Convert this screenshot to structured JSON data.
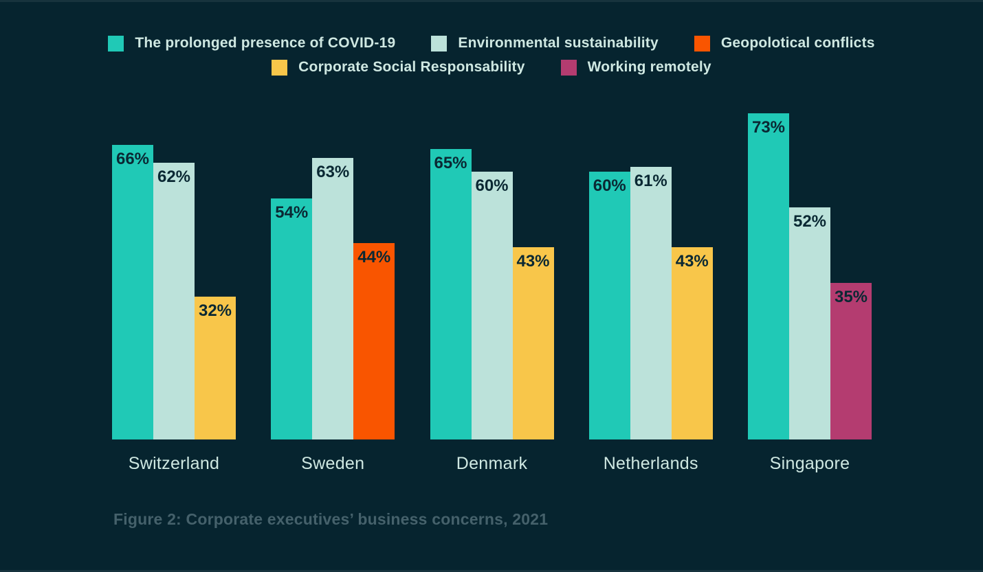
{
  "colors": {
    "background": "#06242f",
    "edge_strip": "#17333d",
    "bar_value_text": "#0a2833",
    "category_text": "#cfe8e2",
    "legend_text": "#cfe8e2",
    "caption_text": "#45616b"
  },
  "series_colors": {
    "The prolonged presence of COVID-19": "#20c9b6",
    "Environmental sustainability": "#bce2da",
    "Geopolotical conflicts": "#f95500",
    "Corporate Social Responsability": "#f8c64a",
    "Working remotely": "#b43c70"
  },
  "legend": {
    "rows": [
      [
        {
          "label": "The prolonged presence of COVID-19",
          "color": "#20c9b6"
        },
        {
          "label": "Environmental sustainability",
          "color": "#bce2da"
        },
        {
          "label": "Geopolotical conflicts",
          "color": "#f95500"
        }
      ],
      [
        {
          "label": "Corporate Social Responsability",
          "color": "#f8c64a"
        },
        {
          "label": "Working remotely",
          "color": "#b43c70"
        }
      ]
    ]
  },
  "chart_data": {
    "type": "bar",
    "title": "",
    "caption": "Figure 2: Corporate executives’ business concerns, 2021",
    "unit": "%",
    "value_axis_visible": false,
    "grid": false,
    "legend_position": "top",
    "ylim": [
      0,
      100
    ],
    "categories": [
      "Switzerland",
      "Sweden",
      "Denmark",
      "Netherlands",
      "Singapore"
    ],
    "series": [
      {
        "name": "The prolonged presence of COVID-19",
        "values": [
          66,
          54,
          65,
          60,
          73
        ]
      },
      {
        "name": "Environmental sustainability",
        "values": [
          62,
          63,
          60,
          61,
          52
        ]
      },
      {
        "name": "Geopolotical conflicts",
        "values": [
          null,
          44,
          null,
          null,
          null
        ]
      },
      {
        "name": "Corporate Social Responsability",
        "values": [
          32,
          null,
          43,
          43,
          null
        ]
      },
      {
        "name": "Working remotely",
        "values": [
          null,
          null,
          null,
          null,
          35
        ]
      }
    ],
    "groups": [
      {
        "category": "Switzerland",
        "bars": [
          {
            "series": "The prolonged presence of COVID-19",
            "value": 66,
            "label": "66%"
          },
          {
            "series": "Environmental sustainability",
            "value": 62,
            "label": "62%"
          },
          {
            "series": "Corporate Social Responsability",
            "value": 32,
            "label": "32%"
          }
        ]
      },
      {
        "category": "Sweden",
        "bars": [
          {
            "series": "The prolonged presence of COVID-19",
            "value": 54,
            "label": "54%"
          },
          {
            "series": "Environmental sustainability",
            "value": 63,
            "label": "63%"
          },
          {
            "series": "Geopolotical conflicts",
            "value": 44,
            "label": "44%"
          }
        ]
      },
      {
        "category": "Denmark",
        "bars": [
          {
            "series": "The prolonged presence of COVID-19",
            "value": 65,
            "label": "65%"
          },
          {
            "series": "Environmental sustainability",
            "value": 60,
            "label": "60%"
          },
          {
            "series": "Corporate Social Responsability",
            "value": 43,
            "label": "43%"
          }
        ]
      },
      {
        "category": "Netherlands",
        "bars": [
          {
            "series": "The prolonged presence of COVID-19",
            "value": 60,
            "label": "60%"
          },
          {
            "series": "Environmental sustainability",
            "value": 61,
            "label": "61%"
          },
          {
            "series": "Corporate Social Responsability",
            "value": 43,
            "label": "43%"
          }
        ]
      },
      {
        "category": "Singapore",
        "bars": [
          {
            "series": "The prolonged presence of COVID-19",
            "value": 73,
            "label": "73%"
          },
          {
            "series": "Environmental sustainability",
            "value": 52,
            "label": "52%"
          },
          {
            "series": "Working remotely",
            "value": 35,
            "label": "35%"
          }
        ]
      }
    ]
  }
}
